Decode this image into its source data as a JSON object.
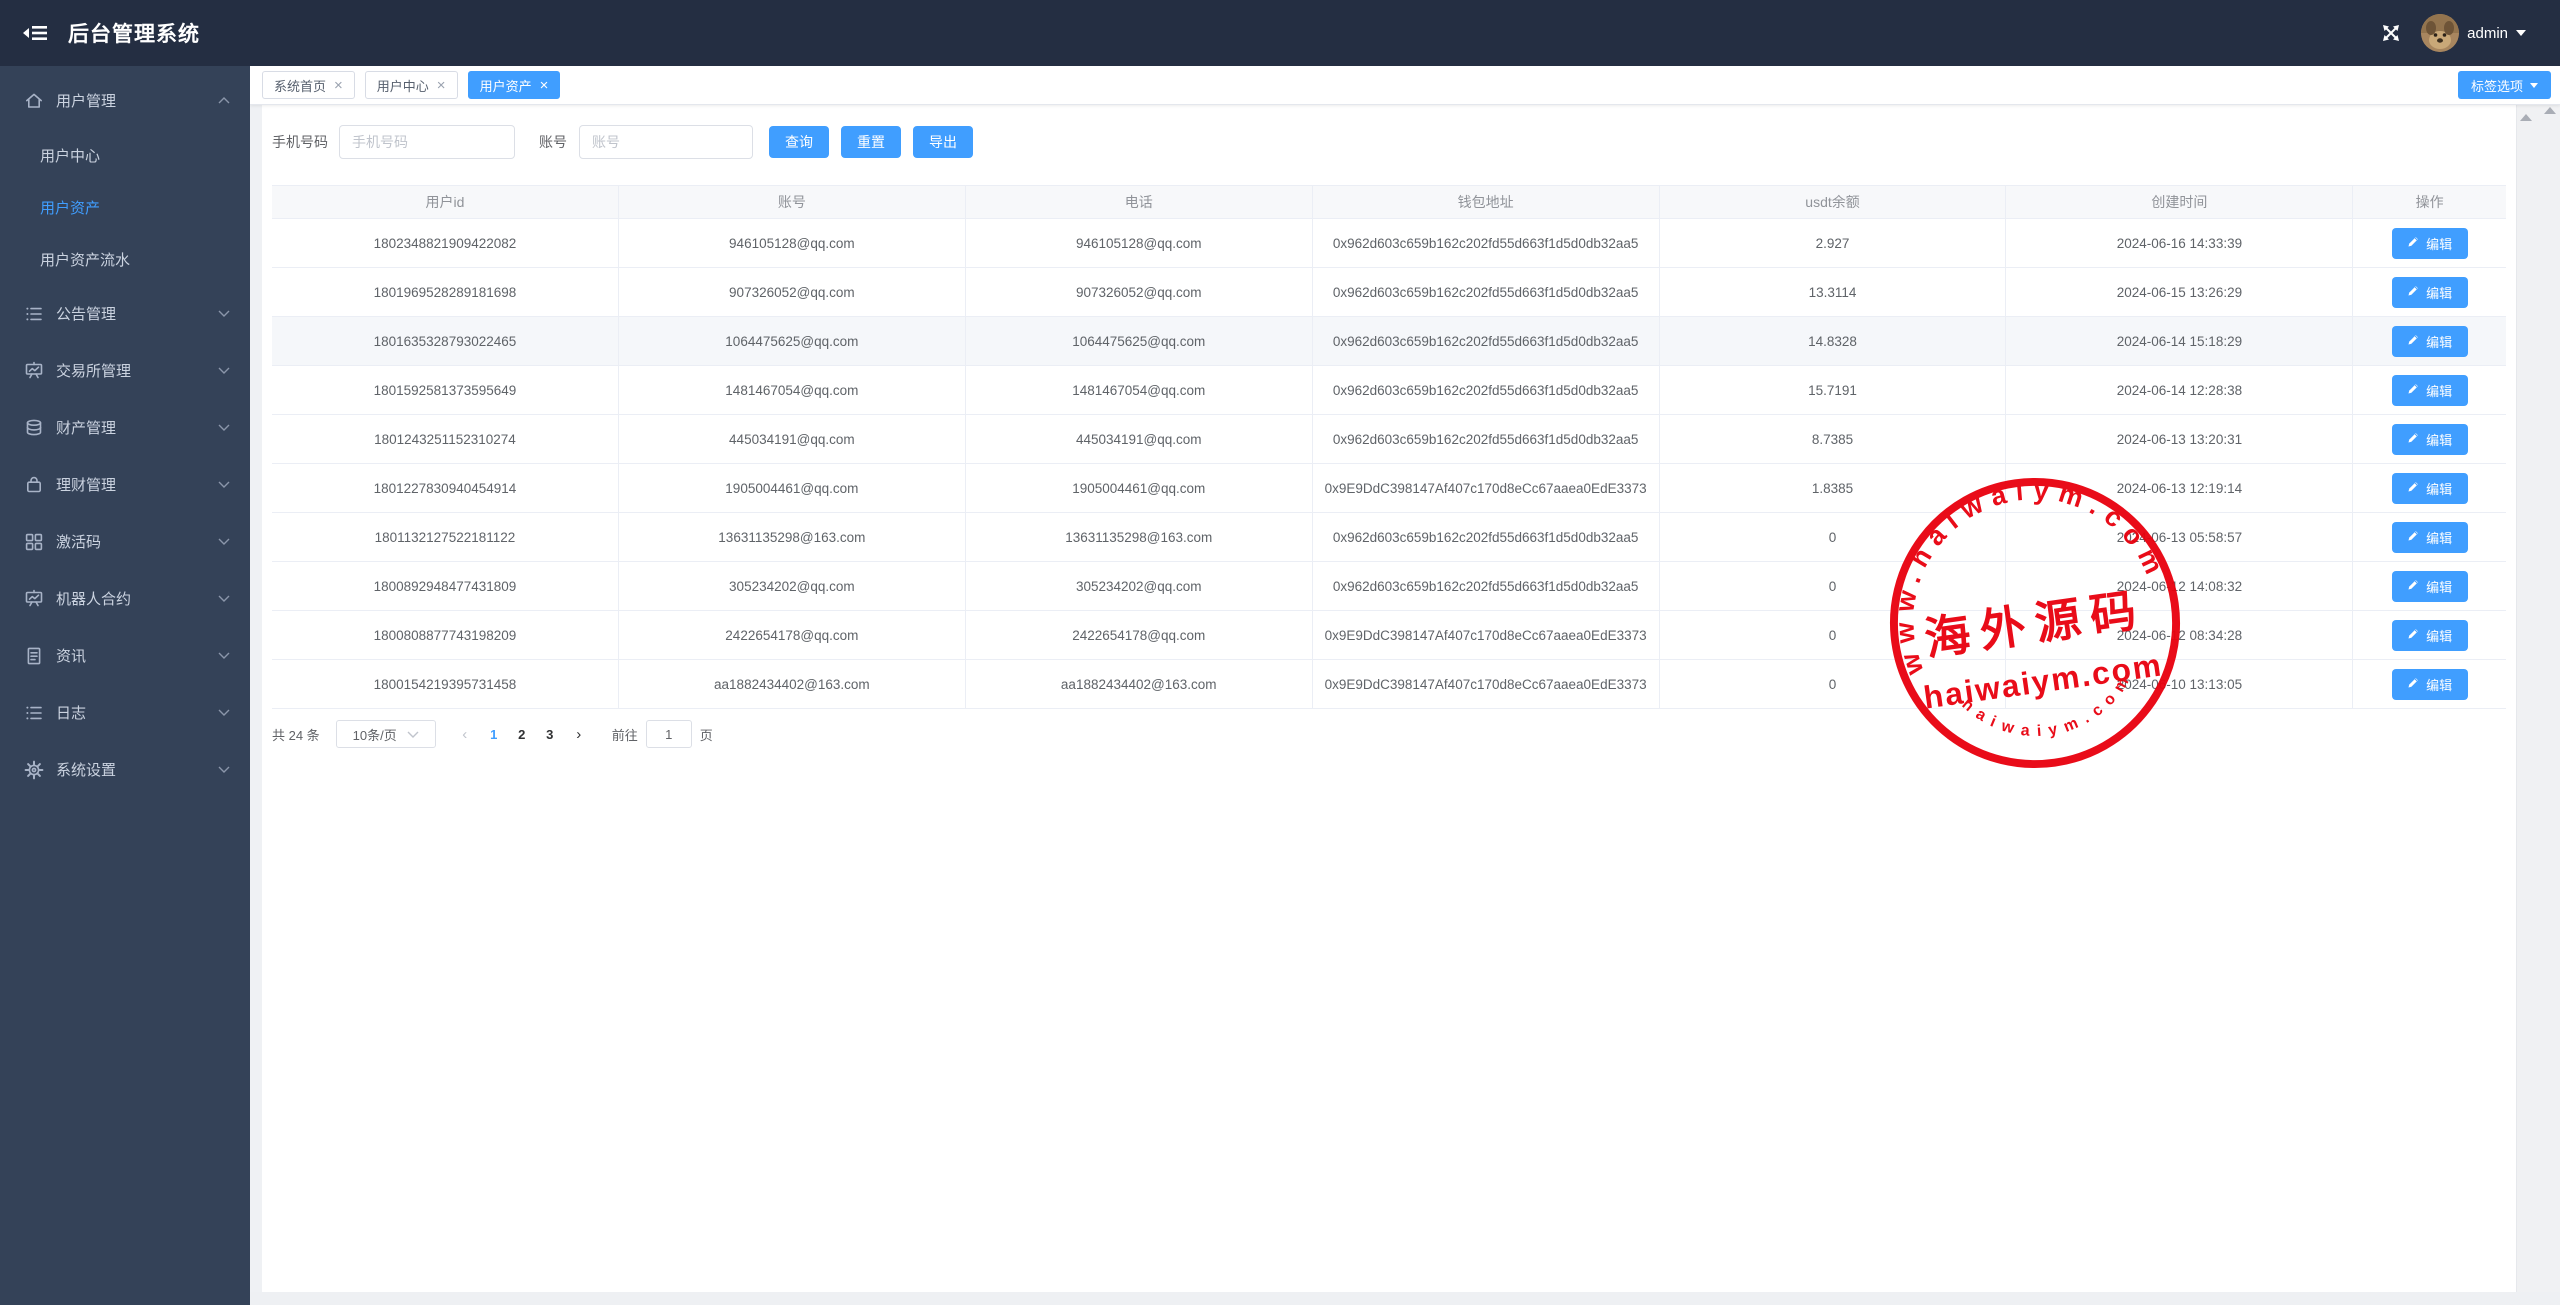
{
  "colors": {
    "accent": "#409eff",
    "header_bg": "#242e42",
    "sidebar_bg": "#344258",
    "stamp_red": "#e8000d"
  },
  "header": {
    "title": "后台管理系统",
    "user": {
      "name": "admin"
    }
  },
  "sidebar": {
    "items": [
      {
        "icon": "home-icon",
        "label": "用户管理",
        "expanded": true,
        "children": [
          {
            "label": "用户中心",
            "active": false
          },
          {
            "label": "用户资产",
            "active": true
          },
          {
            "label": "用户资产流水",
            "active": false
          }
        ]
      },
      {
        "icon": "list-icon",
        "label": "公告管理",
        "expanded": false
      },
      {
        "icon": "board-icon",
        "label": "交易所管理",
        "expanded": false
      },
      {
        "icon": "database-icon",
        "label": "财产管理",
        "expanded": false
      },
      {
        "icon": "lock-icon",
        "label": "理财管理",
        "expanded": false
      },
      {
        "icon": "grid-icon",
        "label": "激活码",
        "expanded": false
      },
      {
        "icon": "board-icon",
        "label": "机器人合约",
        "expanded": false
      },
      {
        "icon": "document-icon",
        "label": "资讯",
        "expanded": false
      },
      {
        "icon": "list-icon",
        "label": "日志",
        "expanded": false
      },
      {
        "icon": "gear-icon",
        "label": "系统设置",
        "expanded": false
      }
    ]
  },
  "tabbar": {
    "tabs": [
      {
        "label": "系统首页",
        "active": false
      },
      {
        "label": "用户中心",
        "active": false
      },
      {
        "label": "用户资产",
        "active": true
      }
    ],
    "tag_options_label": "标签选项"
  },
  "filters": {
    "phone": {
      "label": "手机号码",
      "placeholder": "手机号码",
      "value": ""
    },
    "account": {
      "label": "账号",
      "placeholder": "账号",
      "value": ""
    },
    "buttons": {
      "query": "查询",
      "reset": "重置",
      "export": "导出"
    }
  },
  "table": {
    "columns": [
      "用户id",
      "账号",
      "电话",
      "钱包地址",
      "usdt余额",
      "创建时间",
      "操作"
    ],
    "edit_label": "编辑",
    "highlighted_row": 2,
    "rows": [
      {
        "id": "1802348821909422082",
        "account": "946105128@qq.com",
        "phone": "946105128@qq.com",
        "wallet": "0x962d603c659b162c202fd55d663f1d5d0db32aa5",
        "usdt": "2.927",
        "created": "2024-06-16 14:33:39"
      },
      {
        "id": "1801969528289181698",
        "account": "907326052@qq.com",
        "phone": "907326052@qq.com",
        "wallet": "0x962d603c659b162c202fd55d663f1d5d0db32aa5",
        "usdt": "13.3114",
        "created": "2024-06-15 13:26:29"
      },
      {
        "id": "1801635328793022465",
        "account": "1064475625@qq.com",
        "phone": "1064475625@qq.com",
        "wallet": "0x962d603c659b162c202fd55d663f1d5d0db32aa5",
        "usdt": "14.8328",
        "created": "2024-06-14 15:18:29"
      },
      {
        "id": "1801592581373595649",
        "account": "1481467054@qq.com",
        "phone": "1481467054@qq.com",
        "wallet": "0x962d603c659b162c202fd55d663f1d5d0db32aa5",
        "usdt": "15.7191",
        "created": "2024-06-14 12:28:38"
      },
      {
        "id": "1801243251152310274",
        "account": "445034191@qq.com",
        "phone": "445034191@qq.com",
        "wallet": "0x962d603c659b162c202fd55d663f1d5d0db32aa5",
        "usdt": "8.7385",
        "created": "2024-06-13 13:20:31"
      },
      {
        "id": "1801227830940454914",
        "account": "1905004461@qq.com",
        "phone": "1905004461@qq.com",
        "wallet": "0x9E9DdC398147Af407c170d8eCc67aaea0EdE3373",
        "usdt": "1.8385",
        "created": "2024-06-13 12:19:14"
      },
      {
        "id": "1801132127522181122",
        "account": "13631135298@163.com",
        "phone": "13631135298@163.com",
        "wallet": "0x962d603c659b162c202fd55d663f1d5d0db32aa5",
        "usdt": "0",
        "created": "2024-06-13 05:58:57"
      },
      {
        "id": "1800892948477431809",
        "account": "305234202@qq.com",
        "phone": "305234202@qq.com",
        "wallet": "0x962d603c659b162c202fd55d663f1d5d0db32aa5",
        "usdt": "0",
        "created": "2024-06-12 14:08:32"
      },
      {
        "id": "1800808877743198209",
        "account": "2422654178@qq.com",
        "phone": "2422654178@qq.com",
        "wallet": "0x9E9DdC398147Af407c170d8eCc67aaea0EdE3373",
        "usdt": "0",
        "created": "2024-06-12 08:34:28"
      },
      {
        "id": "1800154219395731458",
        "account": "aa1882434402@163.com",
        "phone": "aa1882434402@163.com",
        "wallet": "0x9E9DdC398147Af407c170d8eCc67aaea0EdE3373",
        "usdt": "0",
        "created": "2024-06-10 13:13:05"
      }
    ]
  },
  "pagination": {
    "total_label": "共 24 条",
    "page_size_label": "10条/页",
    "pages": [
      "1",
      "2",
      "3"
    ],
    "current_page": "1",
    "goto_label": "前往",
    "goto_value": "1",
    "page_unit_label": "页"
  },
  "watermark": {
    "arc_top": "www.haiwaiym.com",
    "center": "海外源码",
    "main": "haiwaiym.com",
    "arc_bottom": "haiwaiym.com"
  }
}
